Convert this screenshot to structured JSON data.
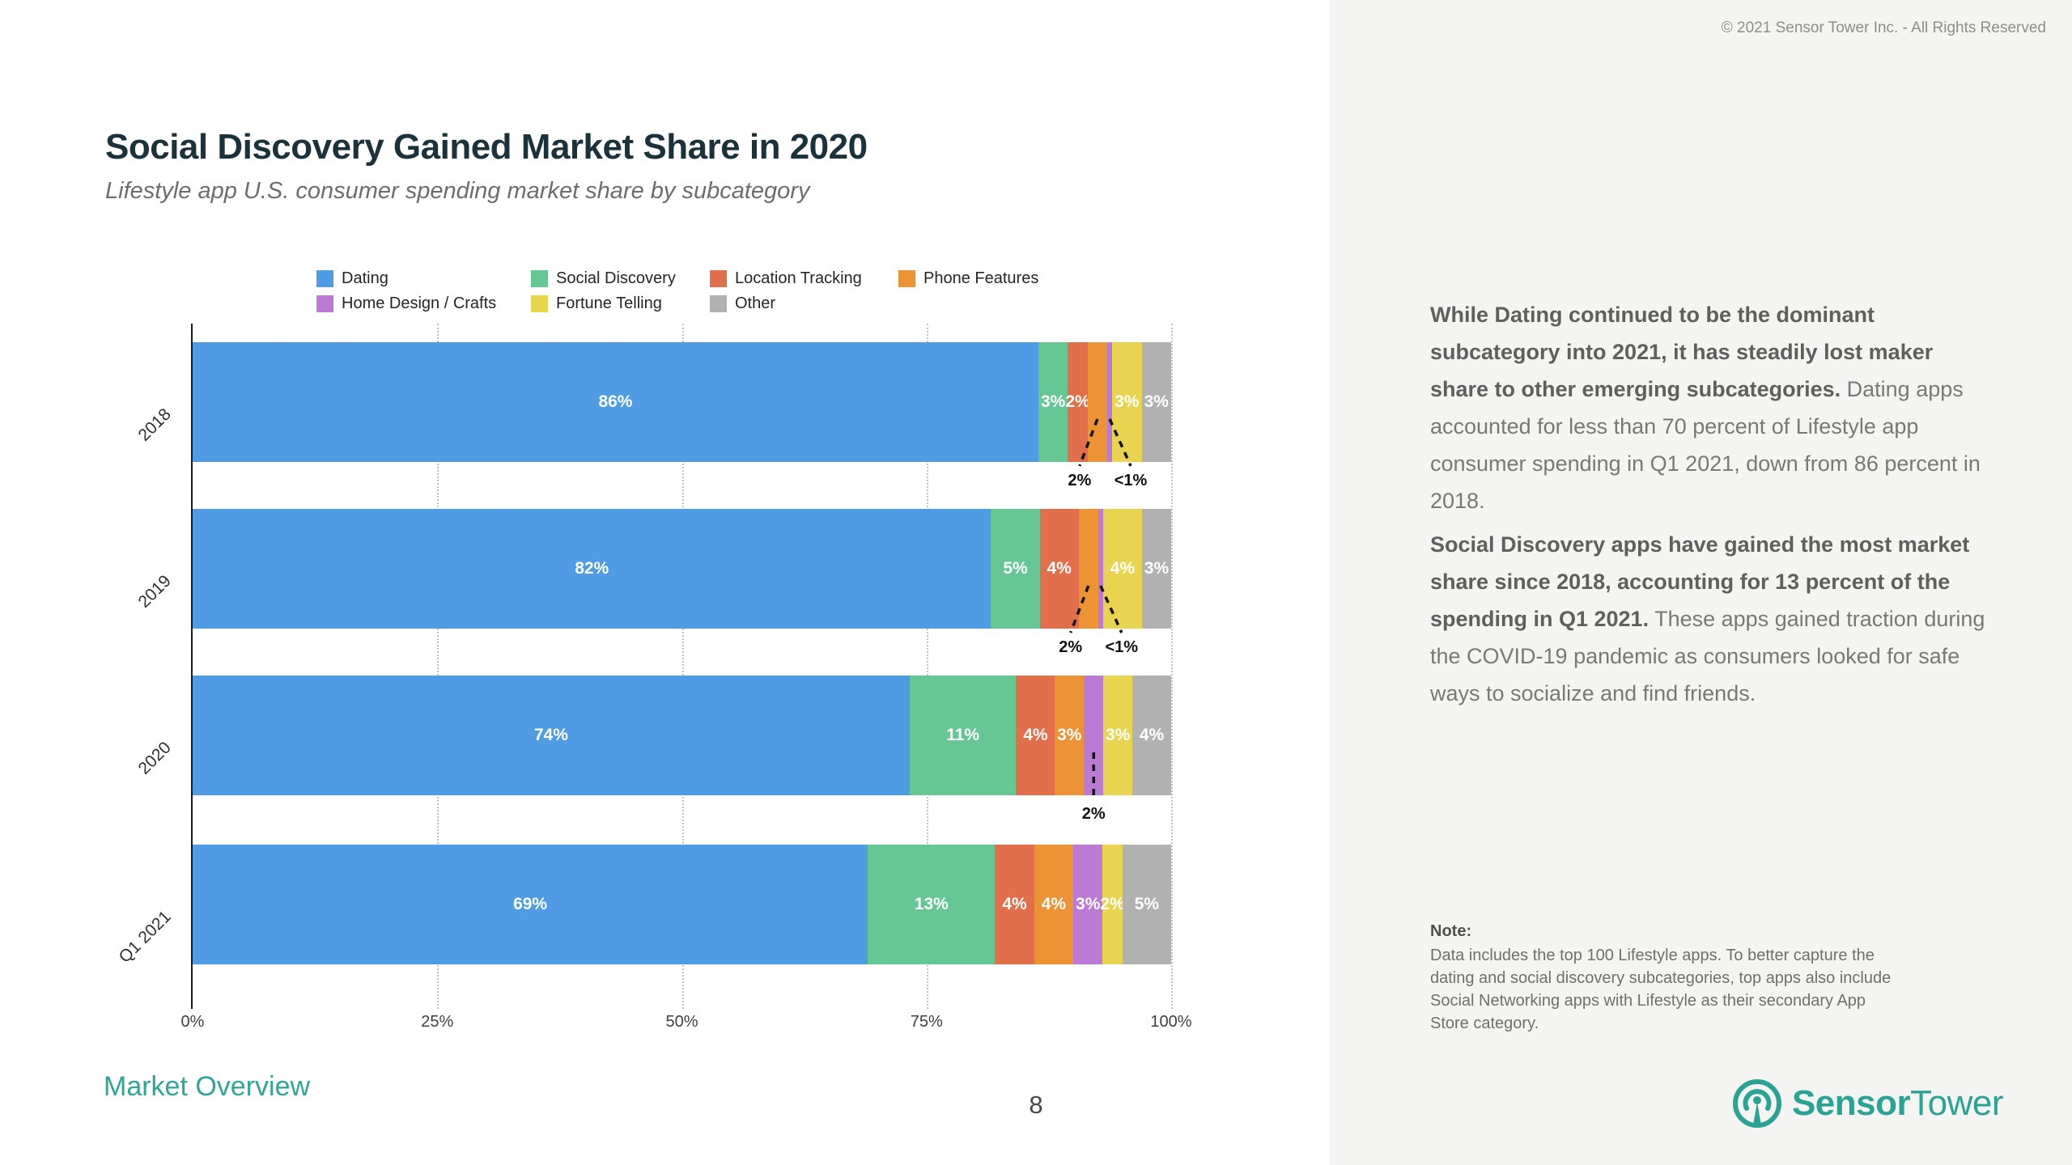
{
  "header": {
    "copyright": "© 2021 Sensor Tower Inc. - All Rights Reserved",
    "title": "Social Discovery Gained Market Share in 2020",
    "subtitle": "Lifestyle app U.S. consumer spending market share by subcategory"
  },
  "chart_data": {
    "type": "bar",
    "orientation": "horizontal",
    "stacked": true,
    "title": "Social Discovery Gained Market Share in 2020",
    "subtitle": "Lifestyle app U.S. consumer spending market share by subcategory",
    "categories": [
      "2018",
      "2019",
      "2020",
      "Q1 2021"
    ],
    "series": [
      {
        "name": "Dating",
        "color": "#4F9CE4",
        "values": [
          86,
          82,
          74,
          69
        ],
        "bar_labels": [
          "86%",
          "82%",
          "74%",
          "69%"
        ]
      },
      {
        "name": "Social Discovery",
        "color": "#66C694",
        "values": [
          3,
          5,
          11,
          13
        ],
        "bar_labels": [
          "3%",
          "5%",
          "11%",
          "13%"
        ]
      },
      {
        "name": "Location Tracking",
        "color": "#E26F4C",
        "values": [
          2,
          4,
          4,
          4
        ],
        "bar_labels": [
          "2%",
          "4%",
          "4%",
          "4%"
        ]
      },
      {
        "name": "Phone Features",
        "color": "#EC9435",
        "values": [
          2,
          2,
          3,
          4
        ],
        "bar_labels": [
          "",
          "",
          "3%",
          "4%"
        ]
      },
      {
        "name": "Home Design / Crafts",
        "color": "#BB7BD4",
        "values": [
          0.5,
          0.5,
          2,
          3
        ],
        "bar_labels": [
          "",
          "",
          "",
          "3%"
        ]
      },
      {
        "name": "Fortune Telling",
        "color": "#E9D44F",
        "values": [
          3,
          4,
          3,
          2
        ],
        "bar_labels": [
          "3%",
          "4%",
          "3%",
          "2%"
        ]
      },
      {
        "name": "Other",
        "color": "#B1B1B1",
        "values": [
          3,
          3,
          4,
          5
        ],
        "bar_labels": [
          "3%",
          "3%",
          "4%",
          "5%"
        ]
      }
    ],
    "callouts": [
      {
        "row": 0,
        "series": 3,
        "label": "2%",
        "dx": -22
      },
      {
        "row": 0,
        "series": 4,
        "label": "<1%",
        "dx": 26
      },
      {
        "row": 1,
        "series": 3,
        "label": "2%",
        "dx": -22
      },
      {
        "row": 1,
        "series": 4,
        "label": "<1%",
        "dx": 26
      },
      {
        "row": 2,
        "series": 4,
        "label": "2%",
        "dx": 0
      }
    ],
    "x_ticks": [
      {
        "label": "0%",
        "value": 0
      },
      {
        "label": "25%",
        "value": 25
      },
      {
        "label": "50%",
        "value": 50
      },
      {
        "label": "75%",
        "value": 75
      },
      {
        "label": "100%",
        "value": 100
      }
    ],
    "xlim": [
      0,
      100
    ],
    "grid": "vertical-dotted",
    "legend_position": "top",
    "legend_rows": [
      [
        0,
        1,
        2,
        3
      ],
      [
        4,
        5,
        6
      ]
    ]
  },
  "panel": {
    "p1_bold": "While Dating continued to be the dominant subcategory into 2021, it has steadily lost maker share to other emerging subcategories.",
    "p1_rest": " Dating apps accounted for less than 70 percent of Lifestyle app consumer spending in Q1 2021, down from 86 percent in 2018.",
    "p2_bold": "Social Discovery apps have gained the most market share since 2018, accounting for 13 percent of the spending in Q1 2021.",
    "p2_rest": " These apps gained traction during the COVID-19 pandemic as consumers looked for safe ways to socialize and find friends.",
    "note_title": "Note:",
    "note_body": "Data includes the top 100 Lifestyle apps. To better capture the dating and social discovery subcategories, top apps also include Social Networking apps with Lifestyle as their secondary App Store category."
  },
  "footer": {
    "section": "Market Overview",
    "page": "8"
  },
  "logo": {
    "text_bold": "Sensor",
    "text_light": "Tower",
    "color": "#2aa394"
  }
}
